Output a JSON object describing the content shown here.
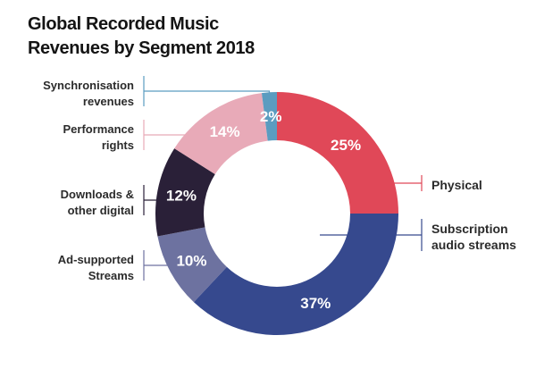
{
  "chart_data": {
    "type": "pie",
    "title": [
      "Global Recorded Music",
      "Revenues by Segment 2018"
    ],
    "start_angle_deg": 0,
    "slices": [
      {
        "name": "Physical",
        "label_lines": [
          "Physical"
        ],
        "value": 25,
        "pct_label": "25%",
        "color": "#e04858",
        "side": "right"
      },
      {
        "name": "Subscription audio streams",
        "label_lines": [
          "Subscription",
          "audio streams"
        ],
        "value": 37,
        "pct_label": "37%",
        "color": "#36498e",
        "side": "right"
      },
      {
        "name": "Ad-supported Streams",
        "label_lines": [
          "Ad-supported",
          "Streams"
        ],
        "value": 10,
        "pct_label": "10%",
        "color": "#6d72a0",
        "side": "left"
      },
      {
        "name": "Downloads & other digital",
        "label_lines": [
          "Downloads &",
          "other digital"
        ],
        "value": 12,
        "pct_label": "12%",
        "color": "#2a2038",
        "side": "left"
      },
      {
        "name": "Performance rights",
        "label_lines": [
          "Performance",
          "rights"
        ],
        "value": 14,
        "pct_label": "14%",
        "color": "#e8aab8",
        "side": "left"
      },
      {
        "name": "Synchronisation revenues",
        "label_lines": [
          "Synchronisation",
          "revenues"
        ],
        "value": 2,
        "pct_label": "2%",
        "color": "#5b9cc0",
        "side": "left"
      }
    ]
  }
}
